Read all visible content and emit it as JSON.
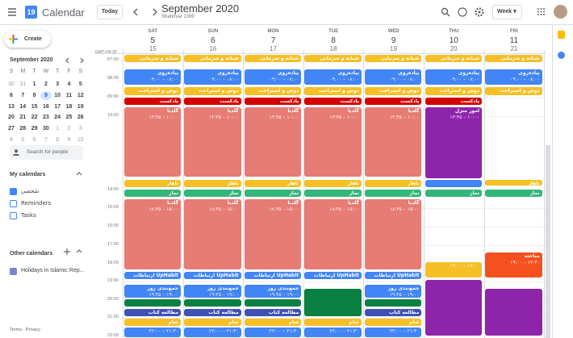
{
  "header": {
    "app_name": "Calendar",
    "logo_day": "19",
    "today_button": "Today",
    "title": "September 2020",
    "subtitle": "Shahrivar 1399",
    "view": "Week"
  },
  "sidebar": {
    "create": "Create",
    "mini_calendar": {
      "title": "September 2020",
      "weekdays": [
        "S",
        "M",
        "T",
        "W",
        "T",
        "F",
        "S"
      ],
      "weeks": [
        [
          "30",
          "31",
          "1",
          "2",
          "3",
          "4",
          "5"
        ],
        [
          "6",
          "7",
          "8",
          "9",
          "10",
          "11",
          "12"
        ],
        [
          "13",
          "14",
          "15",
          "16",
          "17",
          "18",
          "19"
        ],
        [
          "20",
          "21",
          "22",
          "23",
          "24",
          "25",
          "26"
        ],
        [
          "27",
          "28",
          "29",
          "30",
          "1",
          "2",
          "3"
        ],
        [
          "4",
          "5",
          "6",
          "7",
          "8",
          "9",
          "10"
        ]
      ]
    },
    "search": "Search for people",
    "my_calendars": {
      "title": "My calendars",
      "items": [
        "شخصی",
        "Reminders",
        "Tasks"
      ]
    },
    "other_calendars": {
      "title": "Other calendars",
      "items": [
        "Holidays in Islamic Rep..."
      ]
    },
    "footer": [
      "Terms",
      "Privacy"
    ]
  },
  "grid": {
    "timezone": "GMT+04:30",
    "hours": [
      "07:00",
      "08:00",
      "09:00",
      "10:00",
      "14:00",
      "15:00",
      "16:00",
      "17:00",
      "18:00",
      "19:00",
      "20:00",
      "21:00",
      "22:00"
    ],
    "days": [
      {
        "name": "SAT",
        "date": "5",
        "alt_date": "15",
        "events": [
          {
            "title": "شبانه و سرمایی"
          },
          {
            "title": "پیاده‌روی",
            "time": "۰۸:۰۰ – ۰۹:۰۰"
          },
          {
            "title": "دوش و استراحت"
          },
          {
            "title": "پادکست"
          },
          {
            "title": "گلدیا",
            "time": "۱۰:۰۰ – ۱۳:۴۵"
          },
          {
            "title": "ناهار"
          },
          {
            "title": "نماز"
          },
          {
            "title": "گلدیا",
            "time": "۱۵:۰۰ – ۱۸:۴۵"
          },
          {
            "title": "UpHabit ارتباطات"
          },
          {
            "title": "جمع‌بندی روز",
            "time": "۱۹:۰۰ – ۱۹:۴۵"
          },
          {
            "title": "مطالعه کتاب"
          },
          {
            "title": "شام"
          },
          {
            "time": "۲۱:۳۰ – ۲۲:۰۰"
          }
        ]
      },
      {
        "name": "SUN",
        "date": "6",
        "alt_date": "16",
        "events": [
          {
            "title": "شبانه و سرمایی"
          },
          {
            "title": "پیاده‌روی",
            "time": "۰۸:۰۰ – ۰۹:۰۰"
          },
          {
            "title": "دوش و استراحت"
          },
          {
            "title": "پادکست"
          },
          {
            "title": "گلدیا",
            "time": "۱۰:۰۰ – ۱۳:۴۵"
          },
          {
            "title": "ناهار"
          },
          {
            "title": "نماز"
          },
          {
            "title": "گلدیا",
            "time": "۱۵:۰۰ – ۱۸:۴۵"
          },
          {
            "title": "UpHabit ارتباطات"
          },
          {
            "title": "جمع‌بندی روز",
            "time": "۱۹:۰۰ – ۱۹:۴۵"
          },
          {
            "title": "مطالعه کتاب"
          },
          {
            "title": "شام"
          },
          {
            "time": "۲۱:۳۰ – ۲۲:۰۰"
          }
        ]
      },
      {
        "name": "MON",
        "date": "7",
        "alt_date": "17",
        "events": [
          {
            "title": "شبانه و سرمایی"
          },
          {
            "title": "پیاده‌روی",
            "time": "۰۸:۰۰ – ۰۹:۰۰"
          },
          {
            "title": "دوش و استراحت"
          },
          {
            "title": "پادکست"
          },
          {
            "title": "گلدیا",
            "time": "۱۰:۰۰ – ۱۳:۴۵"
          },
          {
            "title": "ناهار"
          },
          {
            "title": "نماز"
          },
          {
            "title": "گلدیا",
            "time": "۱۵:۰۰ – ۱۸:۴۵"
          },
          {
            "title": "UpHabit ارتباطات"
          },
          {
            "title": "جمع‌بندی روز",
            "time": "۱۹:۰۰ – ۱۹:۴۵"
          },
          {
            "title": "مطالعه کتاب"
          },
          {
            "title": "شام"
          },
          {
            "time": "۲۱:۳۰ – ۲۲:۰۰"
          }
        ]
      },
      {
        "name": "TUE",
        "date": "8",
        "alt_date": "18",
        "events": [
          {
            "title": "شبانه و سرمایی"
          },
          {
            "title": "پیاده‌روی",
            "time": "۰۸:۰۰ – ۰۹:۰۰"
          },
          {
            "title": "دوش و استراحت"
          },
          {
            "title": "پادکست"
          },
          {
            "title": "گلدیا",
            "time": "۱۰:۰۰ – ۱۳:۴۵"
          },
          {
            "title": "ناهار"
          },
          {
            "title": "نماز"
          },
          {
            "title": "گلدیا",
            "time": "۱۵:۰۰ – ۱۸:۴۵"
          },
          {
            "title": "UpHabit ارتباطات"
          },
          {
            "title": "شام"
          },
          {
            "time": "۲۱:۳۰ – ۲۲:۰۰"
          }
        ]
      },
      {
        "name": "WED",
        "date": "9",
        "alt_date": "19",
        "events": [
          {
            "title": "شبانه و سرمایی"
          },
          {
            "title": "پیاده‌روی",
            "time": "۰۸:۰۰ – ۰۹:۰۰"
          },
          {
            "title": "دوش و استراحت"
          },
          {
            "title": "پادکست"
          },
          {
            "title": "گلدیا",
            "time": "۱۰:۰۰ – ۱۳:۴۵"
          },
          {
            "title": "ناهار"
          },
          {
            "title": "نماز"
          },
          {
            "title": "گلدیا",
            "time": "۱۵:۰۰ – ۱۸:۴۵"
          },
          {
            "title": "UpHabit ارتباطات"
          },
          {
            "title": "جمع‌بندی روز",
            "time": "۱۹:۰۰ – ۱۹:۴۵"
          },
          {
            "title": "مطالعه کتاب"
          },
          {
            "title": "شام"
          },
          {
            "time": "۲۱:۳۰ – ۲۲:۰۰"
          }
        ]
      },
      {
        "name": "THU",
        "date": "10",
        "alt_date": "20",
        "events": [
          {
            "title": "شبانه و سرمایی"
          },
          {
            "title": "پیاده‌روی",
            "time": "۰۸:۰۰ – ۰۹:۰۰"
          },
          {
            "title": "دوش و استراحت"
          },
          {
            "title": "پادکست"
          },
          {
            "title": "امور منزل",
            "time": "۱۰:۰۰ – ۱۳:۴۵"
          },
          {
            "title": "نماز"
          },
          {
            "time": "۱۸:۰۰ – ۱۹:۰۰"
          }
        ]
      },
      {
        "name": "FRI",
        "date": "11",
        "alt_date": "21",
        "events": [
          {
            "title": "شبانه و سرمایی"
          },
          {
            "title": "پیاده‌روی",
            "time": "۰۸:۰۰ – ۰۹:۰۰"
          },
          {
            "title": "دوش و استراحت"
          },
          {
            "title": "ناهار"
          },
          {
            "title": "نماز"
          },
          {
            "title": "مباحثه",
            "time": "۱۷:۳۰ – ۱۹:۰۰"
          }
        ]
      }
    ]
  }
}
